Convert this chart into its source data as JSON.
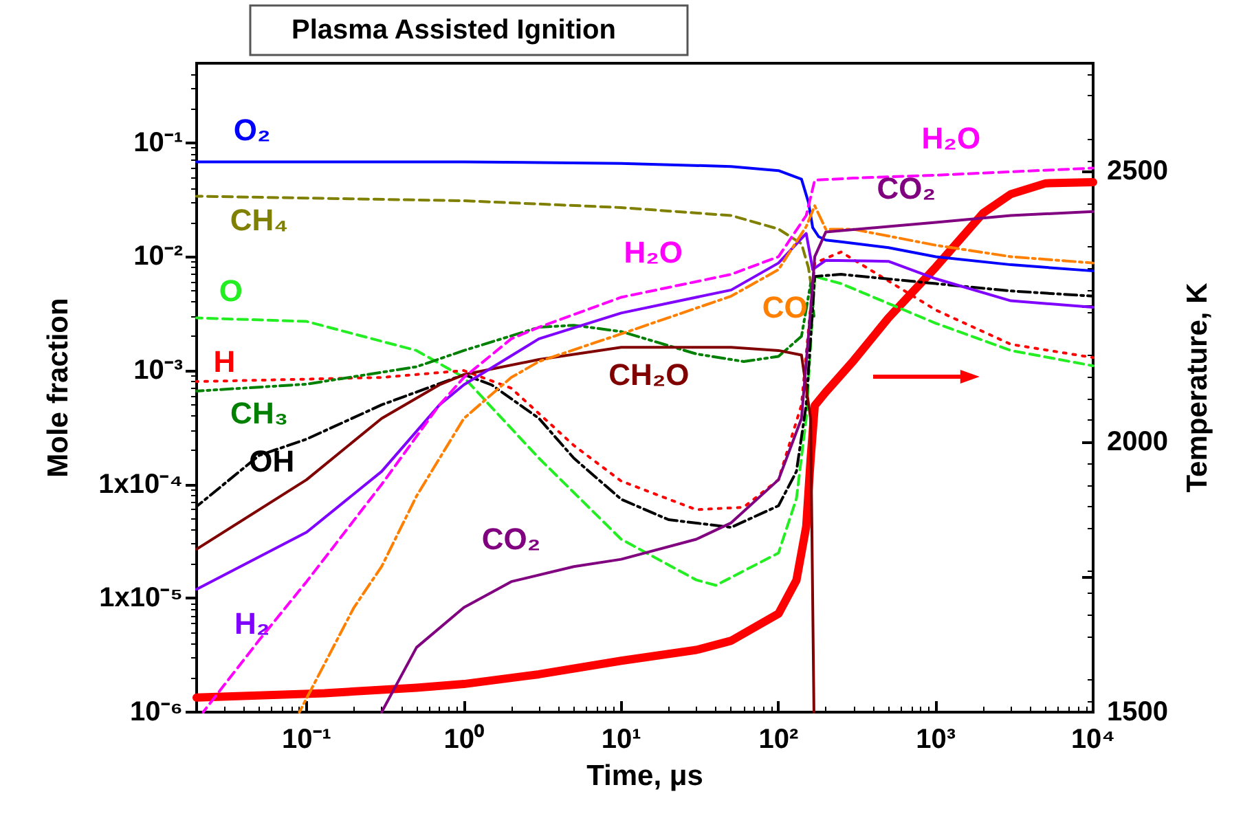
{
  "chart_data": {
    "type": "line",
    "title": "Plasma Assisted Ignition",
    "xlabel": "Time, μs",
    "ylabel": "Mole fraction",
    "y2label": "Temperature, K",
    "log": "xy",
    "xlim": [
      0.02,
      10000
    ],
    "xticks": [
      {
        "value": 0.1,
        "label": "10⁻¹"
      },
      {
        "value": 1,
        "label": "10⁰"
      },
      {
        "value": 10,
        "label": "10¹"
      },
      {
        "value": 100,
        "label": "10²"
      },
      {
        "value": 1000,
        "label": "10³"
      },
      {
        "value": 10000,
        "label": "10⁴"
      }
    ],
    "ylim": [
      1e-06,
      0.5
    ],
    "yticks": [
      {
        "value": 1e-06,
        "label": "10⁻⁶"
      },
      {
        "value": 1e-05,
        "label": "1x10⁻⁵"
      },
      {
        "value": 0.0001,
        "label": "1x10⁻⁴"
      },
      {
        "value": 0.001,
        "label": "10⁻³"
      },
      {
        "value": 0.01,
        "label": "10⁻²"
      },
      {
        "value": 0.1,
        "label": "10⁻¹"
      }
    ],
    "y2lim": [
      1500,
      2700
    ],
    "y2ticks": [
      1500,
      {
        "value": 1750,
        "label": null
      },
      2000,
      {
        "value": 2250,
        "label": null
      },
      2500
    ],
    "grid": false,
    "legend": false,
    "marker": "none",
    "series": [
      {
        "name": "O₂",
        "color": "#0000ff",
        "line_style": "solid",
        "x": [
          0.02,
          1,
          10,
          50,
          100,
          140,
          155,
          165,
          180,
          200,
          250,
          500,
          1000,
          3000,
          10000
        ],
        "values": [
          0.068,
          0.068,
          0.066,
          0.062,
          0.057,
          0.048,
          0.03,
          0.018,
          0.015,
          0.014,
          0.0135,
          0.012,
          0.01,
          0.0085,
          0.0075
        ]
      },
      {
        "name": "CH₄",
        "color": "#808000",
        "line_style": "dashed",
        "x": [
          0.02,
          1,
          10,
          50,
          100,
          140,
          155,
          165
        ],
        "values": [
          0.034,
          0.031,
          0.027,
          0.023,
          0.0175,
          0.013,
          0.008,
          0.0045
        ]
      },
      {
        "name": "O",
        "color": "#22ee22",
        "line_style": "dashed",
        "x": [
          0.02,
          0.1,
          0.5,
          1,
          3,
          10,
          30,
          40,
          100,
          130,
          150,
          170,
          250,
          1000,
          3000,
          10000
        ],
        "values": [
          0.0029,
          0.0027,
          0.0015,
          0.00087,
          0.00017,
          3.3e-05,
          1.45e-05,
          1.3e-05,
          2.5e-05,
          7.5e-05,
          0.00038,
          0.0067,
          0.0058,
          0.0026,
          0.0015,
          0.0011
        ]
      },
      {
        "name": "H",
        "color": "#ff0000",
        "line_style": "dotted",
        "x": [
          0.02,
          0.3,
          1,
          2,
          5,
          10,
          30,
          60,
          100,
          140,
          170,
          250,
          1000,
          3000,
          10000
        ],
        "values": [
          0.0008,
          0.00087,
          0.001,
          0.0007,
          0.00022,
          0.000107,
          6e-05,
          6.3e-05,
          0.00011,
          0.0005,
          0.0088,
          0.011,
          0.0034,
          0.0017,
          0.0013
        ]
      },
      {
        "name": "CH₃",
        "color": "#008000",
        "line_style": "dashdotdot",
        "x": [
          0.02,
          0.1,
          0.5,
          1,
          3,
          5,
          10,
          30,
          60,
          100,
          140,
          160,
          168
        ],
        "values": [
          0.00066,
          0.00076,
          0.00108,
          0.0015,
          0.0024,
          0.0025,
          0.0022,
          0.0014,
          0.0012,
          0.00133,
          0.002,
          0.0058,
          0.003
        ]
      },
      {
        "name": "OH",
        "color": "#000000",
        "line_style": "dashdot",
        "x": [
          0.02,
          0.05,
          0.1,
          0.3,
          1,
          1.5,
          3,
          5,
          10,
          20,
          50,
          100,
          130,
          150,
          170,
          250,
          1000,
          3000,
          10000
        ],
        "values": [
          6.4e-05,
          0.00018,
          0.00025,
          0.0005,
          0.00092,
          0.00075,
          0.00038,
          0.00017,
          7.4e-05,
          4.9e-05,
          4.2e-05,
          6.5e-05,
          0.00013,
          0.0005,
          0.0067,
          0.007,
          0.0058,
          0.005,
          0.0045
        ]
      },
      {
        "name": "CH₂O",
        "color": "#800000",
        "line_style": "solid",
        "x": [
          0.02,
          0.1,
          0.3,
          0.7,
          1,
          3,
          10,
          50,
          100,
          140,
          160,
          168
        ],
        "values": [
          2.7e-05,
          0.00011,
          0.00038,
          0.00075,
          0.00092,
          0.00125,
          0.0016,
          0.0016,
          0.0015,
          0.00137,
          0.00038,
          1e-06
        ]
      },
      {
        "name": "H₂",
        "color": "#8000ff",
        "line_style": "solid",
        "x": [
          0.02,
          0.1,
          0.3,
          0.7,
          1,
          3,
          10,
          50,
          100,
          150,
          165,
          200,
          500,
          1000,
          3000,
          10000
        ],
        "values": [
          1.2e-05,
          3.8e-05,
          0.00013,
          0.0005,
          0.00075,
          0.0019,
          0.0032,
          0.0051,
          0.0088,
          0.016,
          0.0077,
          0.0093,
          0.0091,
          0.0064,
          0.0041,
          0.0036
        ]
      },
      {
        "name": "H₂O",
        "color": "#ff00ff",
        "line_style": "dashed",
        "x": [
          0.022,
          0.05,
          0.1,
          0.3,
          0.7,
          1,
          2,
          3,
          10,
          50,
          100,
          150,
          170,
          300,
          1000,
          10000
        ],
        "values": [
          1e-06,
          4.3e-06,
          1.4e-05,
          0.0001,
          0.0005,
          0.00087,
          0.0019,
          0.0024,
          0.0044,
          0.007,
          0.01,
          0.023,
          0.047,
          0.049,
          0.052,
          0.06
        ]
      },
      {
        "name": "CO",
        "color": "#ff8000",
        "line_style": "dashdot",
        "x": [
          0.09,
          0.2,
          0.3,
          0.5,
          1,
          2,
          3,
          10,
          50,
          100,
          150,
          170,
          200,
          300,
          1000,
          3000,
          10000
        ],
        "values": [
          1e-06,
          8.3e-06,
          1.9e-05,
          7.9e-05,
          0.00038,
          0.00087,
          0.0012,
          0.0021,
          0.0045,
          0.0077,
          0.0184,
          0.028,
          0.0174,
          0.0174,
          0.0126,
          0.01,
          0.0088
        ]
      },
      {
        "name": "CO₂",
        "color": "#800080",
        "line_style": "solid",
        "x": [
          0.3,
          0.5,
          1,
          2,
          5,
          10,
          30,
          50,
          100,
          140,
          160,
          170,
          200,
          500,
          1000,
          3000,
          10000
        ],
        "values": [
          1e-06,
          3.7e-06,
          8.3e-06,
          1.4e-05,
          1.9e-05,
          2.2e-05,
          3.3e-05,
          4.6e-05,
          0.00011,
          0.00038,
          0.0034,
          0.01,
          0.0165,
          0.0184,
          0.02,
          0.023,
          0.0249
        ]
      },
      {
        "color": "#ff0000",
        "axis": "y2",
        "line_style": "solid",
        "x": [
          0.02,
          0.13,
          0.5,
          1,
          3,
          10,
          30,
          50,
          100,
          130,
          150,
          160,
          170,
          200,
          300,
          500,
          1000,
          2000,
          3000,
          5000,
          10000
        ],
        "values": [
          1527,
          1535,
          1545,
          1552,
          1570,
          1595,
          1615,
          1632,
          1682,
          1744,
          1843,
          1968,
          2067,
          2092,
          2150,
          2229,
          2323,
          2423,
          2458,
          2478,
          2480
        ]
      }
    ]
  }
}
